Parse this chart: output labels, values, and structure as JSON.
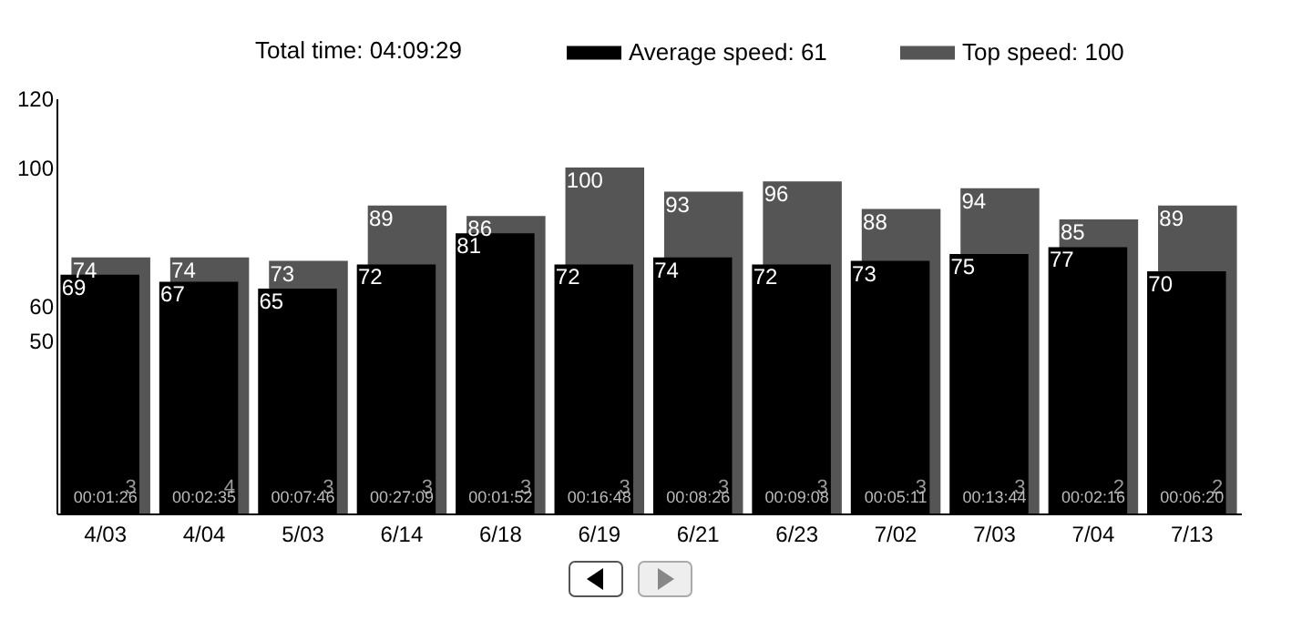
{
  "chart_data": {
    "type": "bar",
    "categories": [
      "4/03",
      "4/04",
      "5/03",
      "6/14",
      "6/18",
      "6/19",
      "6/21",
      "6/23",
      "7/02",
      "7/03",
      "7/04",
      "7/13"
    ],
    "series": [
      {
        "name": "Average speed: 61",
        "color": "#000000",
        "values": [
          69,
          67,
          65,
          72,
          81,
          72,
          74,
          72,
          73,
          75,
          77,
          70
        ]
      },
      {
        "name": "Top speed: 100",
        "color": "#555555",
        "values": [
          74,
          74,
          73,
          89,
          86,
          100,
          93,
          96,
          88,
          94,
          85,
          89
        ]
      }
    ],
    "ylim": [
      0,
      120
    ],
    "yticks": [
      50,
      60,
      100,
      120
    ],
    "grid": false,
    "legend": "top",
    "data_labels": true,
    "annotations": [
      "Total time: 04:09:29",
      "3",
      "4",
      "3",
      "3",
      "3",
      "3",
      "3",
      "3",
      "3",
      "3",
      "2",
      "2",
      {
        "text": "00:01:26",
        "x": "4/03",
        "y": 2
      },
      {
        "text": "00:02:35",
        "x": "4/04",
        "y": 2
      },
      {
        "text": "00:07:46",
        "x": "5/03",
        "y": 2
      },
      {
        "text": "00:27:09",
        "x": "6/14",
        "y": 2
      },
      {
        "text": "00:01:52",
        "x": "6/18",
        "y": 2
      },
      {
        "text": "00:16:48",
        "x": "6/19",
        "y": 2
      },
      {
        "text": "00:08:26",
        "x": "6/21",
        "y": 2
      },
      {
        "text": "00:09:08",
        "x": "6/23",
        "y": 2
      },
      {
        "text": "00:05:11",
        "x": "7/02",
        "y": 2
      },
      {
        "text": "00:13:44",
        "x": "7/03",
        "y": 2
      },
      {
        "text": "00:02:16",
        "x": "7/04",
        "y": 2
      },
      {
        "text": "00:06:20",
        "x": "7/13",
        "y": 2
      }
    ]
  }
}
